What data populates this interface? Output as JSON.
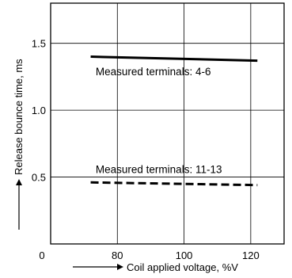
{
  "chart_data": {
    "type": "line",
    "title": "",
    "xlabel": "Coil applied voltage, %V",
    "ylabel": "Release bounce time, ms",
    "xlim": [
      60,
      130
    ],
    "ylim": [
      0,
      1.8
    ],
    "x_ticks": [
      80,
      100,
      120
    ],
    "y_ticks": [
      0.5,
      1.0,
      1.5
    ],
    "origin_label": "0",
    "grid": true,
    "legend": "none",
    "series": [
      {
        "x": [
          72,
          122
        ],
        "y": [
          1.4,
          1.37
        ],
        "style": "solid",
        "color": "#000000"
      },
      {
        "x": [
          72,
          122
        ],
        "y": [
          0.46,
          0.44
        ],
        "style": "dashed",
        "color": "#000000"
      }
    ],
    "annotations": [
      {
        "text": "Measured terminals: 4-6",
        "x": 73.5,
        "y": 1.26
      },
      {
        "text": "Measured terminals: 11-13",
        "x": 73.5,
        "y": 0.53
      }
    ]
  }
}
